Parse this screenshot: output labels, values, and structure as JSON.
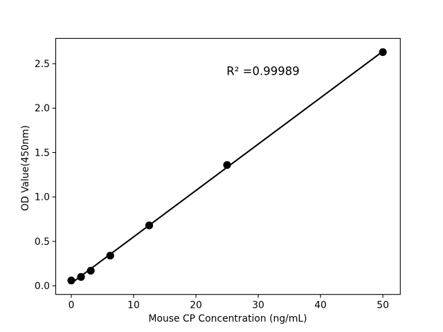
{
  "chart_data": {
    "type": "scatter",
    "title": "",
    "xlabel": "Mouse CP Concentration (ng/mL)",
    "ylabel": "OD Value(450nm)",
    "annotation": "R² =0.99989",
    "r_squared": 0.99989,
    "x": [
      0,
      1.5625,
      3.125,
      6.25,
      12.5,
      25,
      50
    ],
    "y": [
      0.06,
      0.1,
      0.17,
      0.34,
      0.68,
      1.36,
      2.63
    ],
    "fit_line": {
      "x": [
        0,
        50
      ],
      "y": [
        0.029,
        2.639
      ]
    },
    "xticks": {
      "values": [
        0,
        10,
        20,
        30,
        40,
        50
      ],
      "labels": [
        "0",
        "10",
        "20",
        "30",
        "40",
        "50"
      ]
    },
    "yticks": {
      "values": [
        0,
        0.5,
        1,
        1.5,
        2,
        2.5
      ],
      "labels": [
        "0.0",
        "0.5",
        "1.0",
        "1.5",
        "2.0",
        "2.5"
      ]
    },
    "xlim": [
      -2.5,
      52.8
    ],
    "ylim": [
      -0.097,
      2.785
    ],
    "grid": false,
    "legend": "none",
    "colors": {
      "marker": "#000000",
      "line": "#000000",
      "axis": "#000000",
      "text": "#000000",
      "background": "#ffffff"
    }
  }
}
